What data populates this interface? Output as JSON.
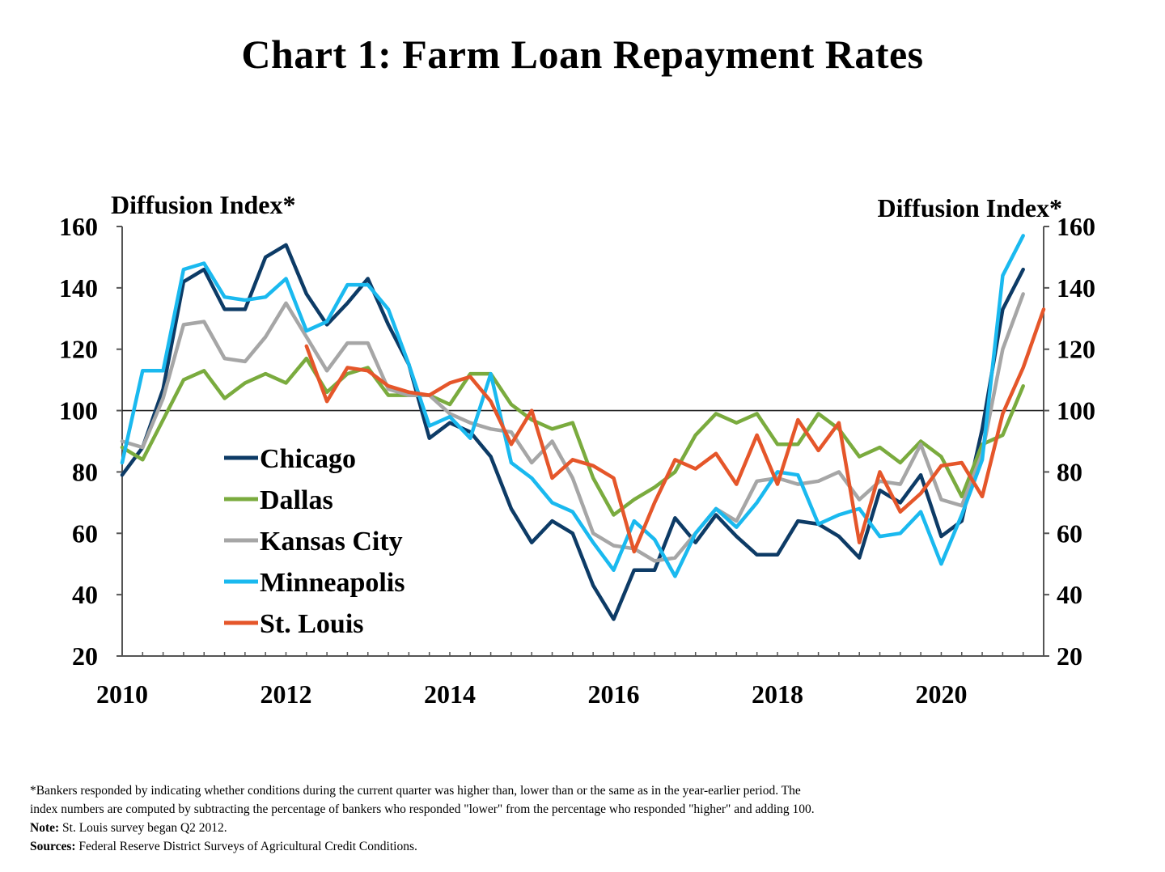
{
  "title": "Chart 1: Farm Loan Repayment Rates",
  "chart_data": {
    "type": "line",
    "title": "Chart 1: Farm Loan Repayment Rates",
    "ylabel_left": "Diffusion Index*",
    "ylabel_right": "Diffusion Index*",
    "ylim": [
      20,
      160
    ],
    "yticks": [
      20,
      40,
      60,
      80,
      100,
      120,
      140,
      160
    ],
    "xlim": [
      2010,
      2021.25
    ],
    "xticks": [
      "2010",
      "2012",
      "2014",
      "2016",
      "2018",
      "2020"
    ],
    "reference_line": 100,
    "grid": false,
    "legend_position": "lower-left",
    "series": [
      {
        "name": "Chicago",
        "color": "#0d3b66",
        "start": 2010.0,
        "values": [
          79,
          88,
          107,
          142,
          146,
          133,
          133,
          150,
          154,
          138,
          128,
          135,
          143,
          128,
          115,
          91,
          96,
          93,
          85,
          68,
          57,
          64,
          60,
          43,
          32,
          48,
          48,
          65,
          57,
          66,
          59,
          53,
          53,
          64,
          63,
          59,
          52,
          74,
          70,
          79,
          59,
          64,
          94,
          133,
          146
        ]
      },
      {
        "name": "Dallas",
        "color": "#7aab3e",
        "start": 2010.0,
        "values": [
          88,
          84,
          97,
          110,
          113,
          104,
          109,
          112,
          109,
          117,
          106,
          112,
          114,
          105,
          105,
          105,
          102,
          112,
          112,
          102,
          97,
          94,
          96,
          78,
          66,
          71,
          75,
          80,
          92,
          99,
          96,
          99,
          89,
          89,
          99,
          94,
          85,
          88,
          83,
          90,
          85,
          72,
          89,
          92,
          108
        ]
      },
      {
        "name": "Kansas City",
        "color": "#a6a6a6",
        "start": 2010.0,
        "values": [
          90,
          88,
          104,
          128,
          129,
          117,
          116,
          124,
          135,
          124,
          113,
          122,
          122,
          107,
          105,
          105,
          99,
          96,
          94,
          93,
          83,
          90,
          78,
          60,
          56,
          55,
          51,
          52,
          60,
          68,
          64,
          77,
          78,
          76,
          77,
          80,
          71,
          77,
          76,
          89,
          71,
          69,
          86,
          120,
          138
        ]
      },
      {
        "name": "Minneapolis",
        "color": "#1ab9ef",
        "start": 2010.0,
        "values": [
          83,
          113,
          113,
          146,
          148,
          137,
          136,
          137,
          143,
          126,
          129,
          141,
          141,
          133,
          115,
          95,
          98,
          91,
          112,
          83,
          78,
          70,
          67,
          57,
          48,
          64,
          58,
          46,
          60,
          68,
          62,
          70,
          80,
          79,
          63,
          66,
          68,
          59,
          60,
          67,
          50,
          66,
          84,
          144,
          157
        ]
      },
      {
        "name": "St. Louis",
        "color": "#e5562a",
        "start": 2012.25,
        "values": [
          121,
          103,
          114,
          113,
          108,
          106,
          105,
          109,
          111,
          103,
          89,
          100,
          78,
          84,
          82,
          78,
          54,
          70,
          84,
          81,
          86,
          76,
          92,
          76,
          97,
          87,
          96,
          57,
          80,
          67,
          73,
          82,
          83,
          72,
          99,
          114,
          133
        ]
      }
    ]
  },
  "footnotes": {
    "line1": "*Bankers responded by indicating  whether conditions  during  the current quarter was higher than, lower than or the same as in the year-earlier period. The",
    "line2": "index numbers are computed by subtracting the percentage of bankers who responded \"lower\"  from the percentage who responded \"higher\"  and adding  100.",
    "note_label": "Note:",
    "note_text": " St. Louis survey began Q2 2012.",
    "sources_label": "Sources:",
    "sources_text": " Federal Reserve District Surveys of Agricultural Credit Conditions."
  }
}
